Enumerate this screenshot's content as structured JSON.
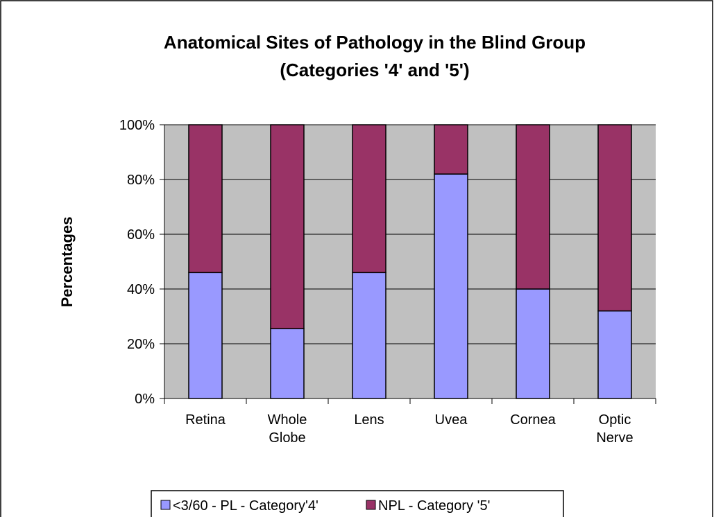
{
  "chart_data": {
    "type": "stacked_bar",
    "title": "Anatomical Sites of Pathology in the Blind Group",
    "subtitle": "(Categories '4' and '5')",
    "y_label": "Percentages",
    "categories": [
      "Retina",
      "Whole Globe",
      "Lens",
      "Uvea",
      "Cornea",
      "Optic Nerve"
    ],
    "series": [
      {
        "name": "<3/60 - PL - Category'4'",
        "color": "#9999ff",
        "values": [
          46,
          25.5,
          46,
          82,
          40,
          32
        ]
      },
      {
        "name": "NPL - Category '5'",
        "color": "#993366",
        "values": [
          54,
          74.5,
          54,
          18,
          60,
          68
        ]
      }
    ],
    "ylim": [
      0,
      100
    ],
    "yticks": [
      {
        "value": 0,
        "label": "0%"
      },
      {
        "value": 20,
        "label": "20%"
      },
      {
        "value": 40,
        "label": "40%"
      },
      {
        "value": 60,
        "label": "60%"
      },
      {
        "value": 80,
        "label": "80%"
      },
      {
        "value": 100,
        "label": "100%"
      }
    ],
    "grid": true,
    "legend": "bottom"
  }
}
